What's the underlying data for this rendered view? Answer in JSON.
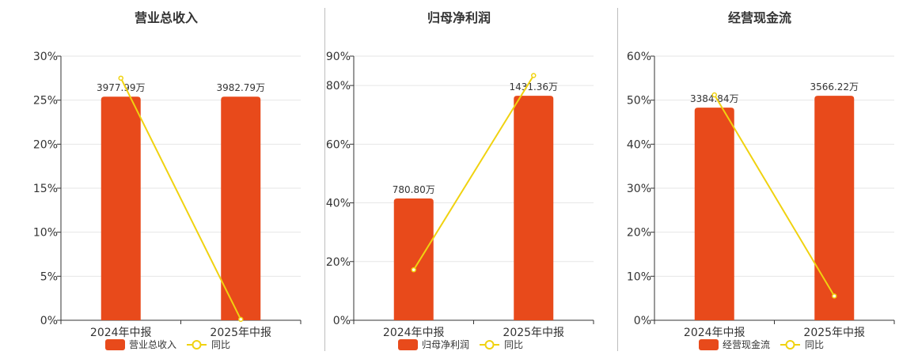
{
  "chart_data": [
    {
      "type": "bar",
      "title": "营业总收入",
      "categories": [
        "2024年中报",
        "2025年中报"
      ],
      "bar_labels": [
        "3977.99万",
        "3982.79万"
      ],
      "ylim": [
        0,
        30
      ],
      "yticks": [
        "0%",
        "5%",
        "10%",
        "15%",
        "20%",
        "25%",
        "30%"
      ],
      "ytick_values": [
        0,
        5,
        10,
        15,
        20,
        25,
        30
      ],
      "series": [
        {
          "name": "营业总收入",
          "kind": "bar",
          "values": [
            25.4,
            25.4
          ],
          "color": "#e84a1b"
        },
        {
          "name": "同比",
          "kind": "line",
          "values": [
            27.5,
            0.1
          ],
          "color": "#f0d210"
        }
      ],
      "grid": true,
      "legend": "bottom-center"
    },
    {
      "type": "bar",
      "title": "归母净利润",
      "categories": [
        "2024年中报",
        "2025年中报"
      ],
      "bar_labels": [
        "780.80万",
        "1431.36万"
      ],
      "ylim": [
        0,
        90
      ],
      "yticks": [
        "0%",
        "20%",
        "40%",
        "60%",
        "80%",
        "90%"
      ],
      "ytick_values": [
        0,
        20,
        40,
        60,
        80,
        90
      ],
      "series": [
        {
          "name": "归母净利润",
          "kind": "bar",
          "values": [
            41.5,
            76.5
          ],
          "color": "#e84a1b"
        },
        {
          "name": "同比",
          "kind": "line",
          "values": [
            17.2,
            83.4
          ],
          "color": "#f0d210"
        }
      ],
      "grid": true,
      "legend": "bottom-center"
    },
    {
      "type": "bar",
      "title": "经营现金流",
      "categories": [
        "2024年中报",
        "2025年中报"
      ],
      "bar_labels": [
        "3384.84万",
        "3566.22万"
      ],
      "ylim": [
        0,
        60
      ],
      "yticks": [
        "0%",
        "10%",
        "20%",
        "30%",
        "40%",
        "50%",
        "60%"
      ],
      "ytick_values": [
        0,
        10,
        20,
        30,
        40,
        50,
        60
      ],
      "series": [
        {
          "name": "经营现金流",
          "kind": "bar",
          "values": [
            48.3,
            51.0
          ],
          "color": "#e84a1b"
        },
        {
          "name": "同比",
          "kind": "line",
          "values": [
            51.2,
            5.5
          ],
          "color": "#f0d210"
        }
      ],
      "grid": true,
      "legend": "bottom-center"
    }
  ]
}
